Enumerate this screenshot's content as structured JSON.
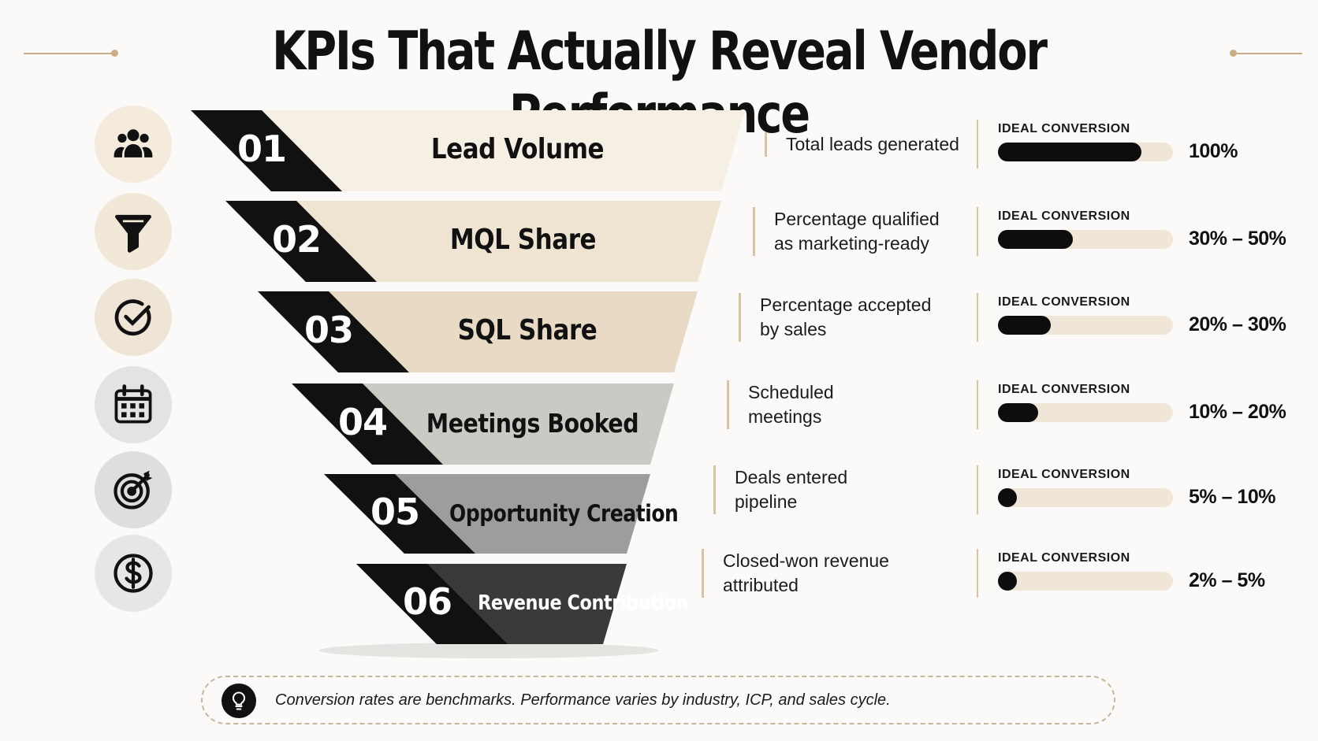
{
  "title": "KPIs That Actually Reveal Vendor Performance",
  "colors": {
    "accent": "#c9ad85",
    "stage_fills": [
      "#f6efe4",
      "#efe4d2",
      "#e8dac5",
      "#cbc9c4",
      "#9e9d9b",
      "#3a3a3a"
    ],
    "icon_circle_fills": [
      "#f4ebdd",
      "#f2e8d8",
      "#efe5d6",
      "#e4e3e1",
      "#dedede",
      "#e6e6e6"
    ],
    "bar_fill": "#0d0d0d",
    "bar_track": "#efe6d8"
  },
  "stages": [
    {
      "number": "01",
      "label": "Lead Volume",
      "icon": "people-icon",
      "description": [
        "Total leads generated"
      ],
      "ideal_label": "IDEAL CONVERSION",
      "range": "100%",
      "bar_level": 0.82
    },
    {
      "number": "02",
      "label": "MQL Share",
      "icon": "funnel-icon",
      "description": [
        "Percentage qualified",
        "as marketing-ready"
      ],
      "ideal_label": "IDEAL CONVERSION",
      "range": "30% – 50%",
      "bar_level": 0.43
    },
    {
      "number": "03",
      "label": "SQL Share",
      "icon": "check-circle-icon",
      "description": [
        "Percentage accepted",
        "by sales"
      ],
      "ideal_label": "IDEAL CONVERSION",
      "range": "20% – 30%",
      "bar_level": 0.3
    },
    {
      "number": "04",
      "label": "Meetings Booked",
      "icon": "calendar-icon",
      "description": [
        "Scheduled",
        "meetings"
      ],
      "ideal_label": "IDEAL CONVERSION",
      "range": "10% – 20%",
      "bar_level": 0.23
    },
    {
      "number": "05",
      "label": "Opportunity Creation",
      "icon": "target-icon",
      "description": [
        "Deals entered",
        "pipeline"
      ],
      "ideal_label": "IDEAL CONVERSION",
      "range": "5% – 10%",
      "bar_level": 0.11
    },
    {
      "number": "06",
      "label": "Revenue Contribution",
      "icon": "dollar-icon",
      "description": [
        "Closed-won revenue",
        "attributed"
      ],
      "ideal_label": "IDEAL CONVERSION",
      "range": "2% – 5%",
      "bar_level": 0.08
    }
  ],
  "footer": {
    "icon": "lightbulb-icon",
    "text": "Conversion rates are benchmarks. Performance varies by industry, ICP, and sales cycle."
  }
}
